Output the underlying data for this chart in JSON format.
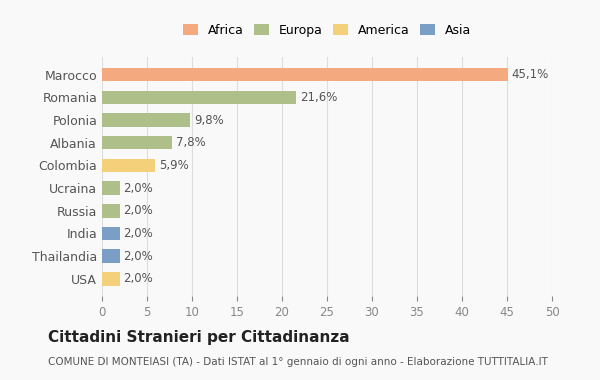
{
  "countries": [
    "Marocco",
    "Romania",
    "Polonia",
    "Albania",
    "Colombia",
    "Ucraina",
    "Russia",
    "India",
    "Thailandia",
    "USA"
  ],
  "values": [
    45.1,
    21.6,
    9.8,
    7.8,
    5.9,
    2.0,
    2.0,
    2.0,
    2.0,
    2.0
  ],
  "labels": [
    "45,1%",
    "21,6%",
    "9,8%",
    "7,8%",
    "5,9%",
    "2,0%",
    "2,0%",
    "2,0%",
    "2,0%",
    "2,0%"
  ],
  "continents": [
    "Africa",
    "Europa",
    "Europa",
    "Europa",
    "America",
    "Europa",
    "Europa",
    "Asia",
    "Asia",
    "America"
  ],
  "colors": {
    "Africa": "#F4A97F",
    "Europa": "#AEBF8A",
    "America": "#F5D07A",
    "Asia": "#7B9EC6"
  },
  "legend_order": [
    "Africa",
    "Europa",
    "America",
    "Asia"
  ],
  "title": "Cittadini Stranieri per Cittadinanza",
  "subtitle": "COMUNE DI MONTEIASI (TA) - Dati ISTAT al 1° gennaio di ogni anno - Elaborazione TUTTITALIA.IT",
  "xlim": [
    0,
    50
  ],
  "xticks": [
    0,
    5,
    10,
    15,
    20,
    25,
    30,
    35,
    40,
    45,
    50
  ],
  "background_color": "#f9f9f9",
  "grid_color": "#dddddd"
}
